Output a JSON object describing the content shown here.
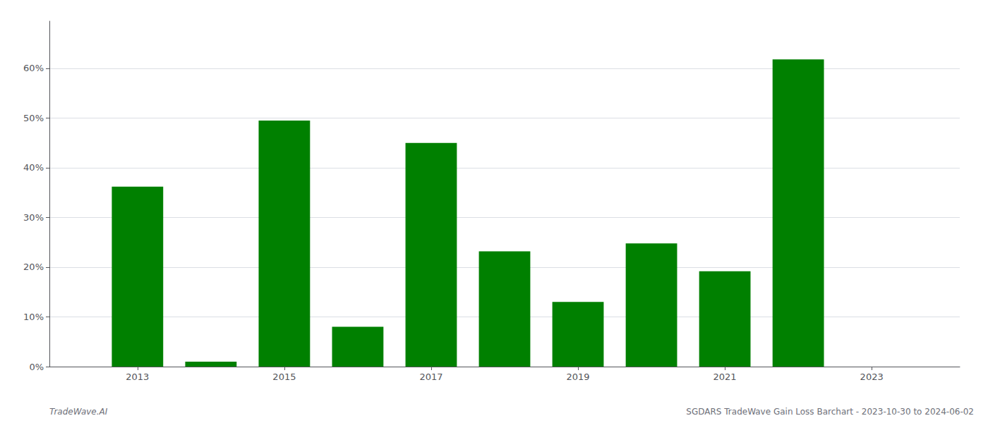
{
  "chart_data": {
    "type": "bar",
    "x": [
      2013,
      2014,
      2015,
      2016,
      2017,
      2018,
      2019,
      2020,
      2021,
      2022
    ],
    "values": [
      0.362,
      0.01,
      0.495,
      0.08,
      0.45,
      0.232,
      0.13,
      0.248,
      0.192,
      0.618
    ],
    "color": "#008000",
    "xlim": [
      2011.8,
      2024.2
    ],
    "xticks": [
      2013,
      2015,
      2017,
      2019,
      2021,
      2023
    ],
    "ylim": [
      0,
      0.695
    ],
    "yticks": [
      {
        "value": 0.0,
        "label": "0%"
      },
      {
        "value": 0.1,
        "label": "10%"
      },
      {
        "value": 0.2,
        "label": "20%"
      },
      {
        "value": 0.3,
        "label": "30%"
      },
      {
        "value": 0.4,
        "label": "40%"
      },
      {
        "value": 0.5,
        "label": "50%"
      },
      {
        "value": 0.6,
        "label": "60%"
      }
    ],
    "grid": true,
    "annotations": [
      "TradeWave.AI",
      "SGDARS TradeWave Gain Loss Barchart - 2023-10-30 to 2024-06-02"
    ]
  }
}
